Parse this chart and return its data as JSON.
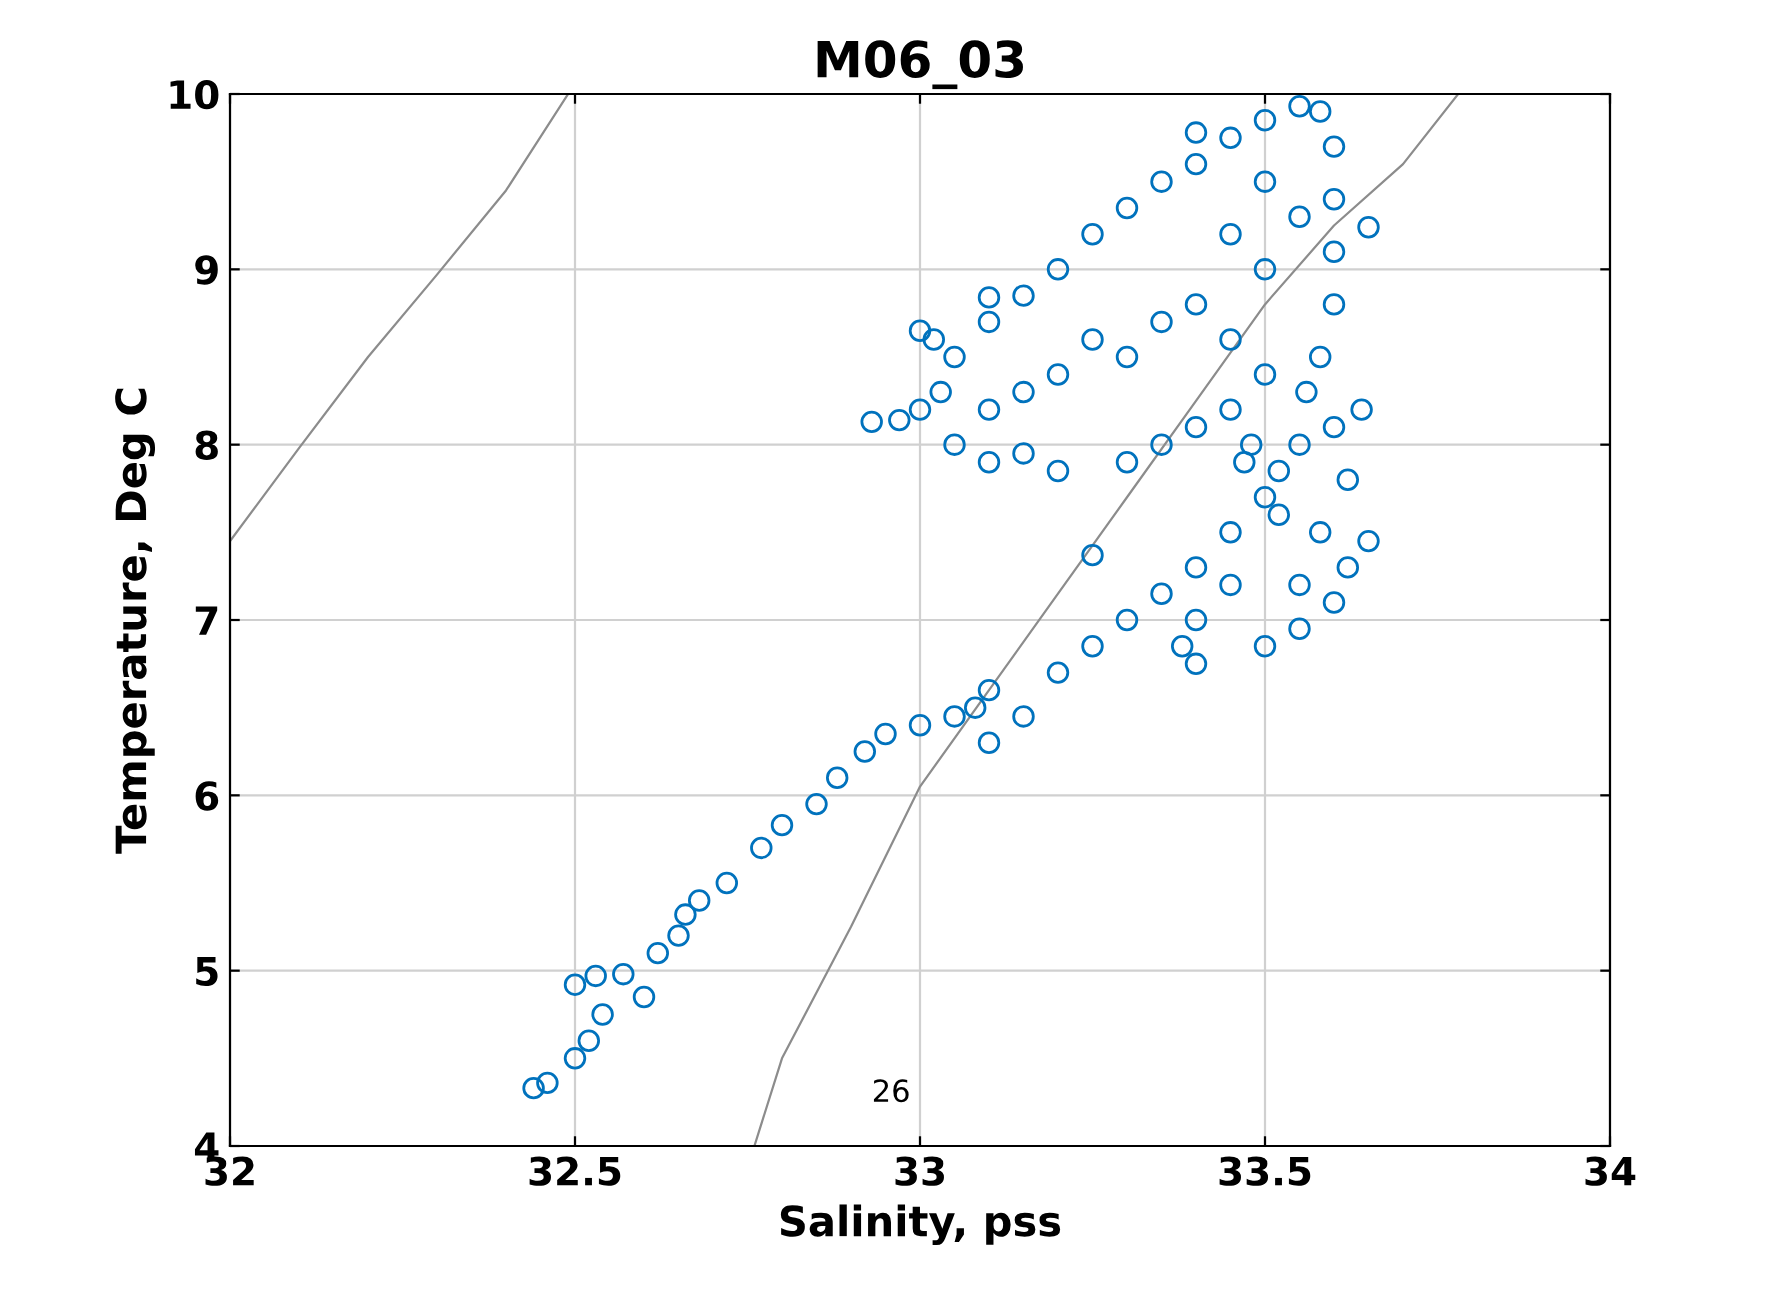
{
  "chart_data": {
    "type": "scatter",
    "title": "M06_03",
    "xlabel": "Salinity, pss",
    "ylabel": "Temperature, Deg C",
    "xlim": [
      32,
      34
    ],
    "ylim": [
      4,
      10
    ],
    "xticks": [
      32,
      32.5,
      33,
      33.5,
      34
    ],
    "yticks": [
      4,
      5,
      6,
      7,
      8,
      9,
      10
    ],
    "grid": true,
    "legend": false,
    "annotations": [
      "26"
    ],
    "series": [
      {
        "type": "line",
        "marker": "none",
        "color": "#8c8c8c",
        "x": [
          32,
          32.1,
          32.2,
          32.3,
          32.4,
          32.49
        ],
        "values": [
          7.45,
          7.98,
          8.5,
          8.97,
          9.45,
          10
        ]
      },
      {
        "type": "line",
        "marker": "none",
        "color": "#8c8c8c",
        "x": [
          32.76,
          32.8,
          32.9,
          33,
          33.1,
          33.2,
          33.3,
          33.4,
          33.5,
          33.6,
          33.7,
          33.78
        ],
        "values": [
          4,
          4.5,
          5.25,
          6.05,
          6.6,
          7.15,
          7.7,
          8.25,
          8.8,
          9.25,
          9.6,
          10
        ]
      },
      {
        "marker": "circle",
        "color": "#0072bd",
        "x": [
          32.44,
          32.46,
          32.5,
          32.52,
          32.54,
          32.5,
          32.53,
          32.57,
          32.6,
          32.62,
          32.65,
          32.66,
          32.68,
          32.72,
          32.77,
          32.8,
          32.85,
          32.88,
          32.92,
          32.95,
          33.0,
          33.05,
          33.08,
          33.1,
          33.1,
          33.15,
          33.2,
          33.25,
          33.3,
          33.35,
          33.4,
          33.45,
          33.5,
          33.4,
          33.45,
          33.38,
          33.4,
          33.5,
          33.55,
          33.6,
          33.62,
          33.65,
          33.62,
          33.6,
          33.64,
          33.55,
          33.52,
          33.58,
          33.55,
          32.93,
          32.97,
          33.0,
          33.03,
          33.05,
          33.1,
          33.15,
          33.2,
          33.25,
          33.3,
          33.35,
          33.4,
          33.45,
          33.5,
          33.55,
          33.58,
          33.6,
          33.6,
          33.6,
          33.6,
          33.58,
          33.56,
          33.65,
          33.05,
          33.1,
          33.15,
          33.2,
          33.3,
          33.35,
          33.4,
          33.45,
          33.5,
          33.3,
          33.4,
          33.45,
          33.5,
          33.2,
          33.15,
          33.1,
          33.25,
          33.35,
          33.45,
          33.5,
          33.55,
          33.25,
          33.0,
          33.02,
          33.1,
          33.4,
          33.47,
          33.52,
          33.48
        ],
        "values": [
          4.33,
          4.36,
          4.5,
          4.6,
          4.75,
          4.92,
          4.97,
          4.98,
          4.85,
          5.1,
          5.2,
          5.32,
          5.4,
          5.5,
          5.7,
          5.83,
          5.95,
          6.1,
          6.25,
          6.35,
          6.4,
          6.45,
          6.5,
          6.6,
          6.3,
          6.45,
          6.7,
          6.85,
          7.0,
          7.15,
          7.3,
          7.5,
          7.7,
          7.0,
          7.2,
          6.85,
          6.75,
          6.85,
          6.95,
          7.1,
          7.3,
          7.45,
          7.8,
          8.1,
          8.2,
          8.0,
          7.6,
          7.5,
          7.2,
          8.13,
          8.14,
          8.2,
          8.3,
          8.5,
          8.7,
          8.85,
          9.0,
          9.2,
          9.35,
          9.5,
          9.6,
          9.75,
          9.85,
          9.93,
          9.9,
          9.7,
          9.4,
          9.1,
          8.8,
          8.5,
          8.3,
          9.24,
          8.0,
          7.9,
          7.95,
          7.85,
          7.9,
          8.0,
          8.1,
          8.2,
          8.4,
          8.5,
          8.8,
          9.2,
          9.5,
          8.4,
          8.3,
          8.2,
          8.6,
          8.7,
          8.6,
          9.0,
          9.3,
          7.37,
          8.65,
          8.6,
          8.84,
          9.78,
          7.9,
          7.85,
          8.0
        ]
      }
    ]
  }
}
